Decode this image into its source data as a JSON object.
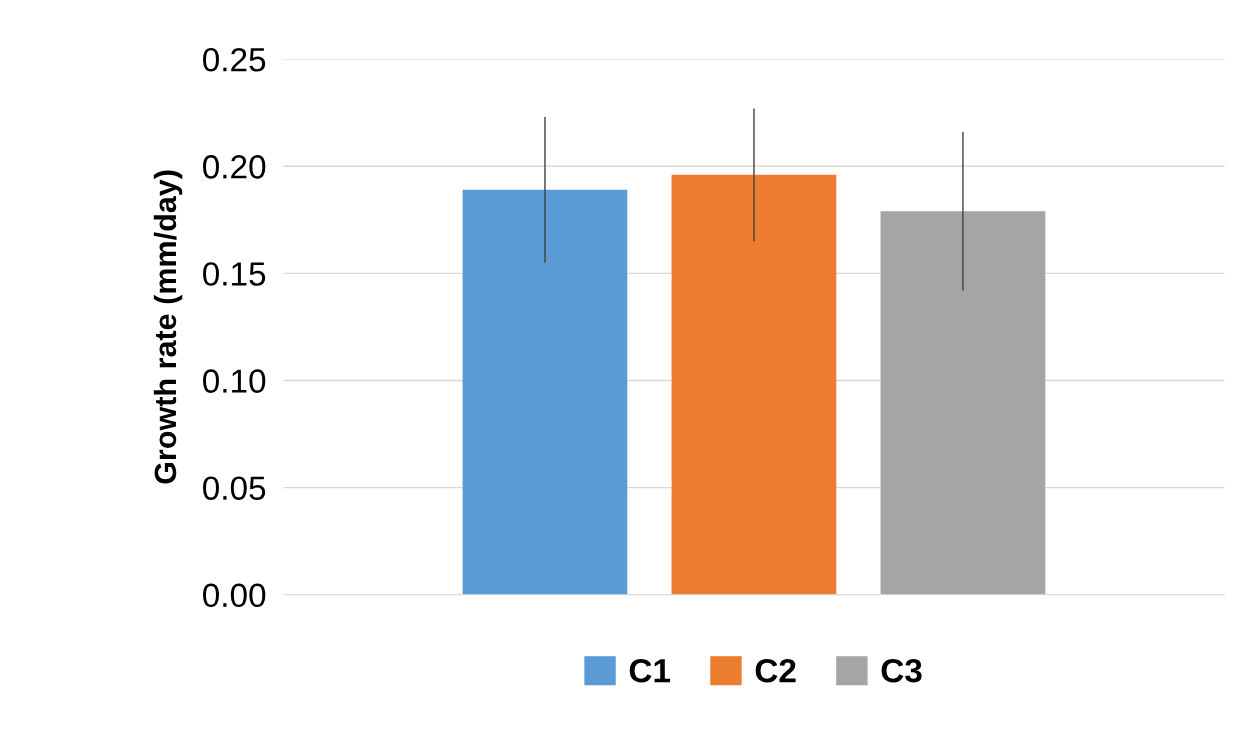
{
  "chart_data": {
    "type": "bar",
    "ylabel": "Growth rate (mm/day)",
    "categories": [
      null
    ],
    "series": [
      {
        "name": "C1",
        "color": "#5b9bd5",
        "values": [
          0.189
        ],
        "errors": [
          0.034
        ]
      },
      {
        "name": "C2",
        "color": "#ed7d31",
        "values": [
          0.196
        ],
        "errors": [
          0.031
        ]
      },
      {
        "name": "C3",
        "color": "#a5a5a5",
        "values": [
          0.179
        ],
        "errors": [
          0.037
        ]
      }
    ],
    "ylim": [
      0,
      0.25
    ],
    "yticks": [
      {
        "value": 0,
        "label": "0.00"
      },
      {
        "value": 0.05,
        "label": "0.05"
      },
      {
        "value": 0.1,
        "label": "0.10"
      },
      {
        "value": 0.15,
        "label": "0.15"
      },
      {
        "value": 0.2,
        "label": "0.20"
      },
      {
        "value": 0.25,
        "label": "0.25"
      }
    ],
    "grid": "y",
    "legend": "bottom"
  }
}
